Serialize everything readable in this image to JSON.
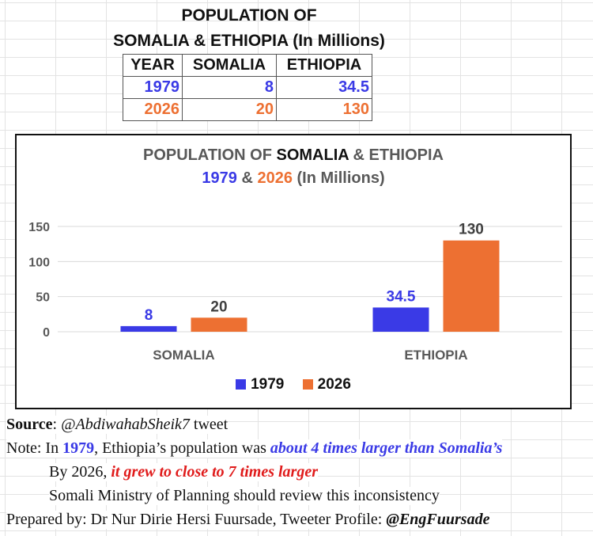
{
  "header": {
    "title_line1": "POPULATION OF",
    "title_line2": "SOMALIA & ETHIOPIA (In Millions)"
  },
  "table": {
    "headers": [
      "YEAR",
      "SOMALIA",
      "ETHIOPIA"
    ],
    "rows": [
      [
        "1979",
        "8",
        "34.5"
      ],
      [
        "2026",
        "20",
        "130"
      ]
    ]
  },
  "chart_data": {
    "type": "bar",
    "title_part1": "POPULATION OF ",
    "title_part2": "SOMALIA",
    "title_part3": " & ",
    "title_part4": "ETHIOPIA",
    "subtitle_year1": "1979",
    "subtitle_amp": " & ",
    "subtitle_year2": "2026",
    "subtitle_rest": " (In Millions)",
    "categories": [
      "SOMALIA",
      "ETHIOPIA"
    ],
    "series": [
      {
        "name": "1979",
        "values": [
          8,
          34.5
        ],
        "labels": [
          "8",
          "34.5"
        ],
        "color": "#3a3ae6"
      },
      {
        "name": "2026",
        "values": [
          20,
          130
        ],
        "labels": [
          "20",
          "130"
        ],
        "color": "#ed7032"
      }
    ],
    "yticks": [
      0,
      50,
      100,
      150
    ],
    "ytick_labels": [
      "0",
      "50",
      "100",
      "150"
    ],
    "ylim": [
      0,
      150
    ],
    "grid": true,
    "legend": "bottom"
  },
  "notes": {
    "source_label": "Source",
    "source_sep": ": ",
    "source_handle": "@AbdiwahabSheik7",
    "source_rest": " tweet",
    "note_prefix": "Note: In ",
    "note_year": "1979",
    "note_mid": ", Ethiopia’s population was ",
    "note_emph": "about 4 times larger than Somalia’s",
    "line3_prefix": "By 2026, ",
    "line3_emph": "it grew to close to 7 times larger",
    "line4": "Somali Ministry of Planning should review this inconsistency",
    "prepared_text": "Prepared by: Dr Nur Dirie Hersi Fuursade, Tweeter Profile:  ",
    "prepared_handle": "@EngFuursade"
  },
  "colors": {
    "series_1979": "#3a3ae6",
    "series_2026": "#ed7032",
    "emphasis_red": "#e01b1b"
  }
}
